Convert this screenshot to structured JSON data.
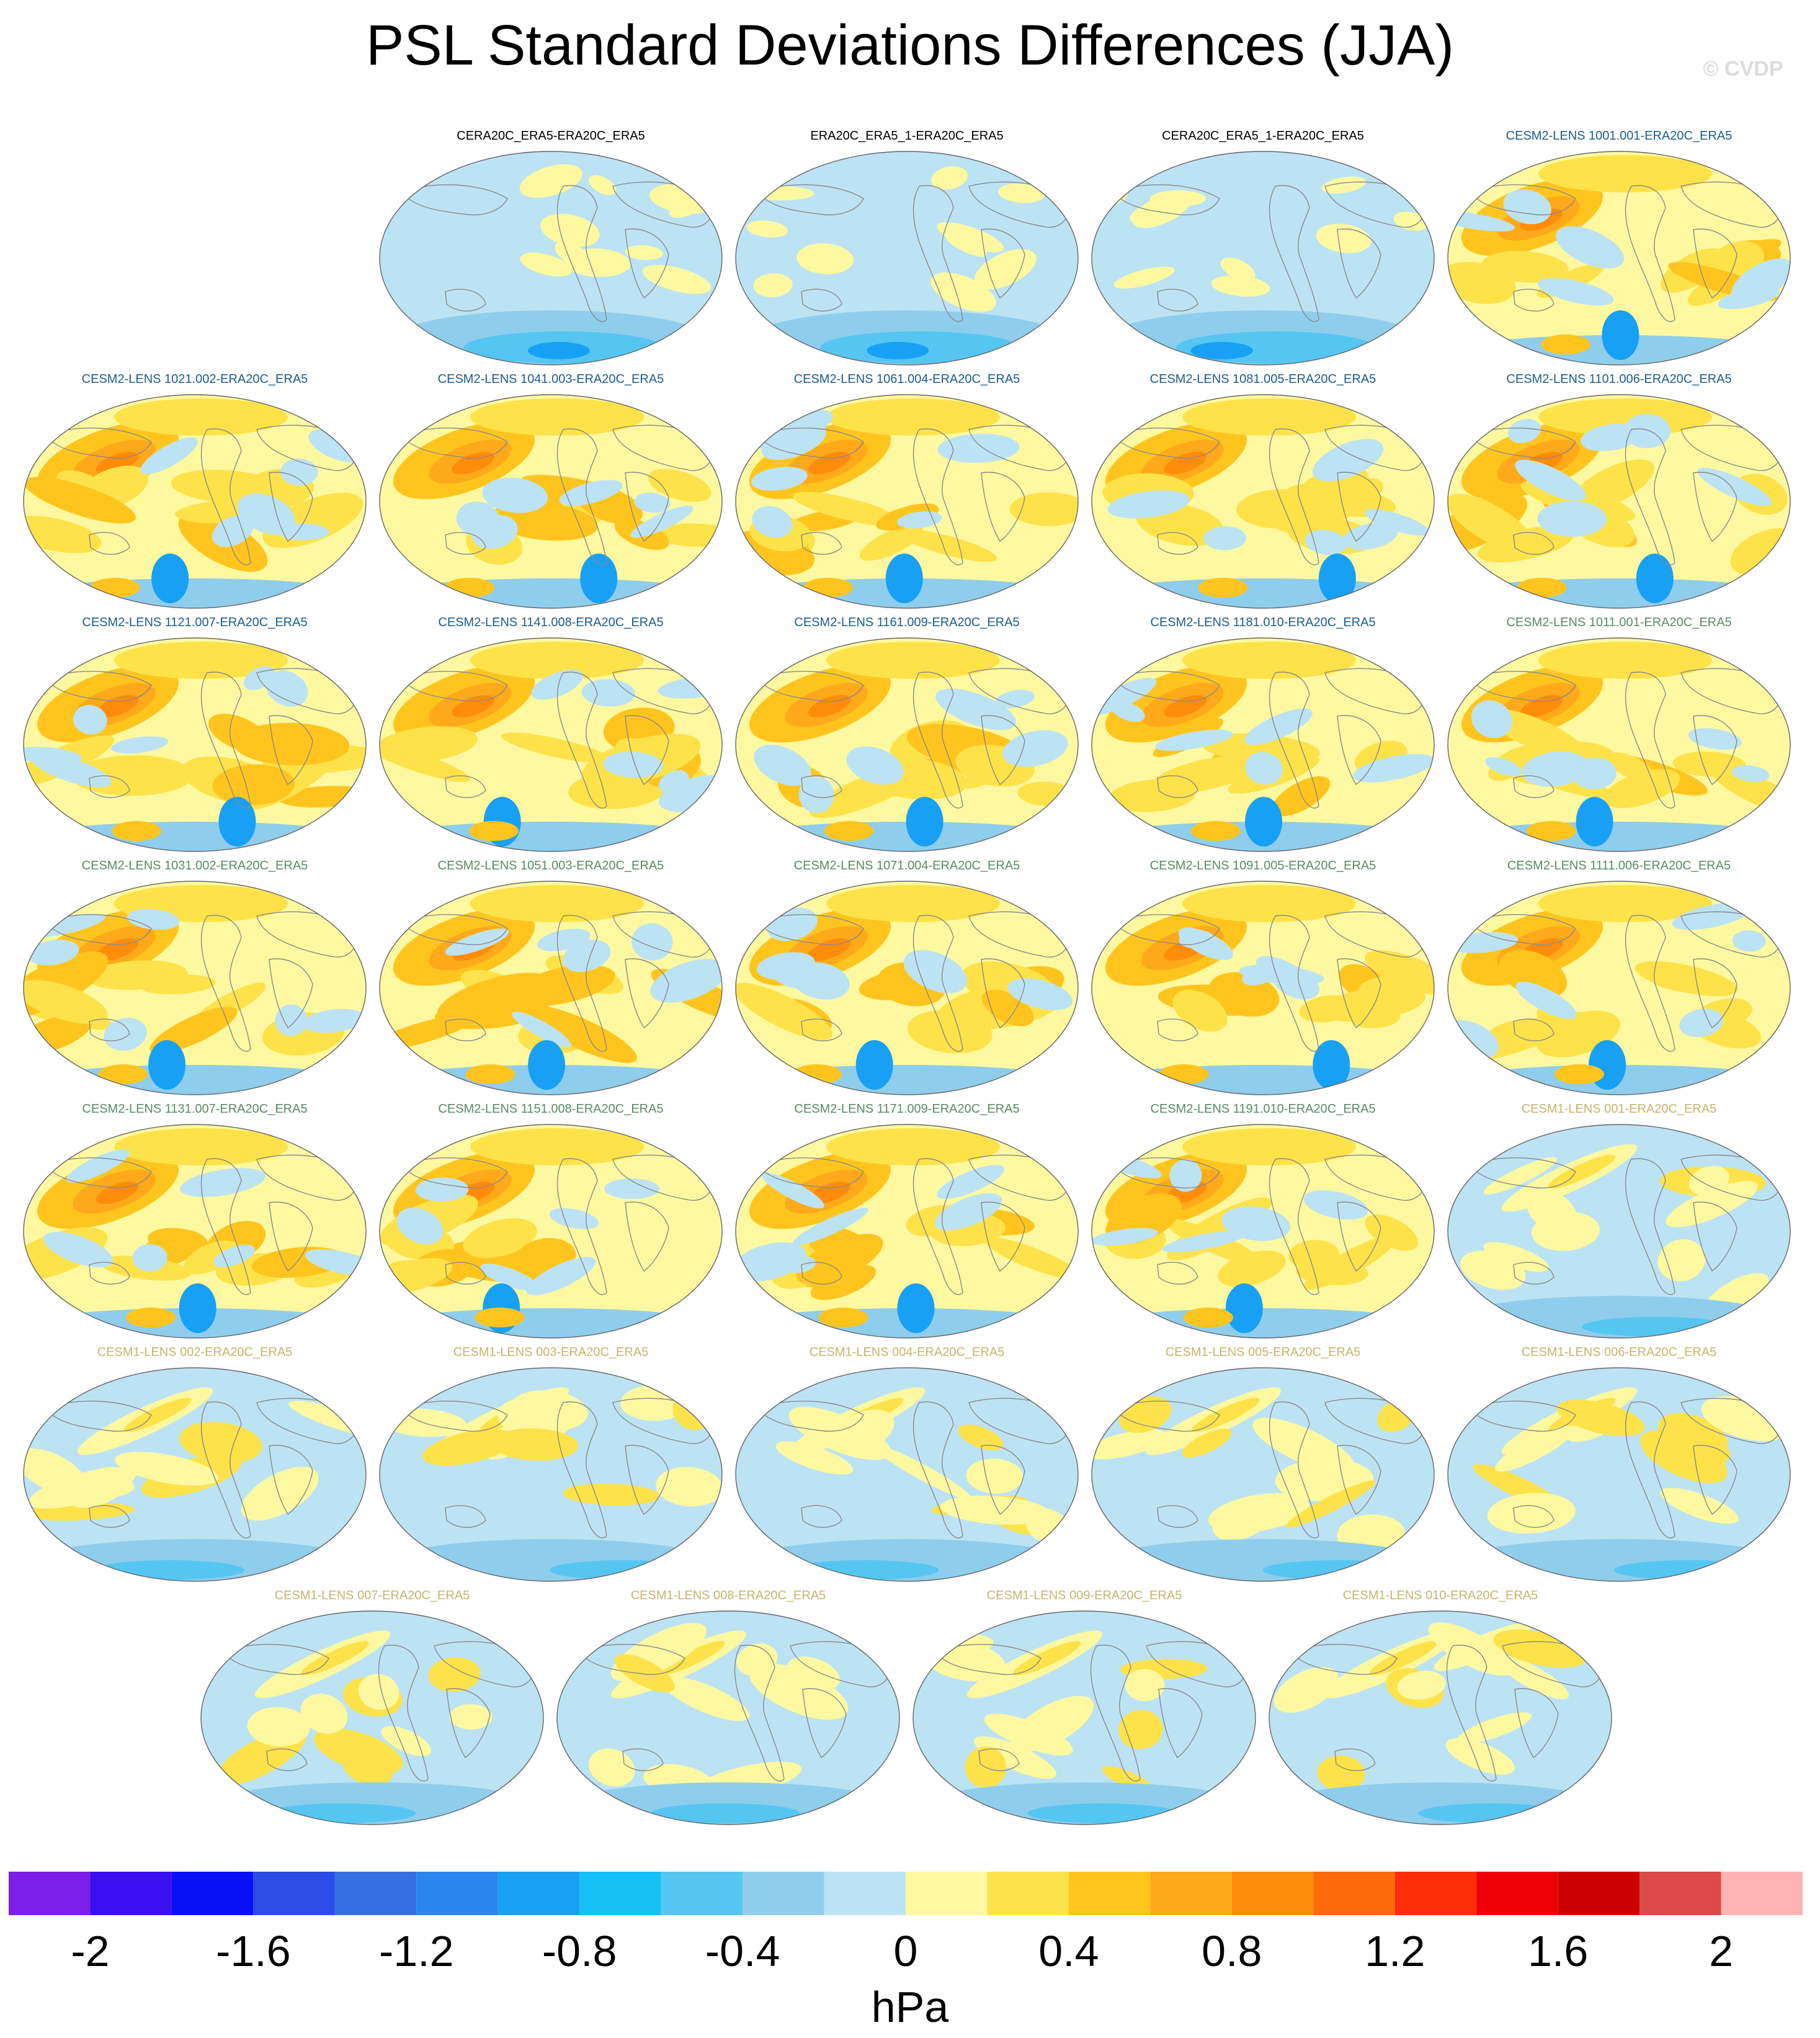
{
  "title": "PSL Standard Deviations Differences (JJA)",
  "watermark": "© CVDP",
  "units": "hPa",
  "colors": {
    "obs_title": "#000000",
    "cesm2_a_title": "#1b5e8c",
    "cesm2_b_title": "#5a8a66",
    "cesm1_title": "#c8b46a",
    "coastline": "#8a8a8a"
  },
  "panels": [
    {
      "label": "CERA20C_ERA5-ERA20C_ERA5",
      "group": "obs",
      "pattern": "negative"
    },
    {
      "label": "ERA20C_ERA5_1-ERA20C_ERA5",
      "group": "obs",
      "pattern": "negative"
    },
    {
      "label": "CERA20C_ERA5_1-ERA20C_ERA5",
      "group": "obs",
      "pattern": "negative"
    },
    {
      "label": "CESM2-LENS 1001.001-ERA20C_ERA5",
      "group": "cesm2_a",
      "pattern": "positive"
    },
    {
      "label": "CESM2-LENS 1021.002-ERA20C_ERA5",
      "group": "cesm2_a",
      "pattern": "positive"
    },
    {
      "label": "CESM2-LENS 1041.003-ERA20C_ERA5",
      "group": "cesm2_a",
      "pattern": "positive"
    },
    {
      "label": "CESM2-LENS 1061.004-ERA20C_ERA5",
      "group": "cesm2_a",
      "pattern": "positive"
    },
    {
      "label": "CESM2-LENS 1081.005-ERA20C_ERA5",
      "group": "cesm2_a",
      "pattern": "positive"
    },
    {
      "label": "CESM2-LENS 1101.006-ERA20C_ERA5",
      "group": "cesm2_a",
      "pattern": "positive"
    },
    {
      "label": "CESM2-LENS 1121.007-ERA20C_ERA5",
      "group": "cesm2_a",
      "pattern": "positive"
    },
    {
      "label": "CESM2-LENS 1141.008-ERA20C_ERA5",
      "group": "cesm2_a",
      "pattern": "positive"
    },
    {
      "label": "CESM2-LENS 1161.009-ERA20C_ERA5",
      "group": "cesm2_a",
      "pattern": "positive"
    },
    {
      "label": "CESM2-LENS 1181.010-ERA20C_ERA5",
      "group": "cesm2_a",
      "pattern": "positive"
    },
    {
      "label": "CESM2-LENS 1011.001-ERA20C_ERA5",
      "group": "cesm2_b",
      "pattern": "positive"
    },
    {
      "label": "CESM2-LENS 1031.002-ERA20C_ERA5",
      "group": "cesm2_b",
      "pattern": "positive"
    },
    {
      "label": "CESM2-LENS 1051.003-ERA20C_ERA5",
      "group": "cesm2_b",
      "pattern": "positive"
    },
    {
      "label": "CESM2-LENS 1071.004-ERA20C_ERA5",
      "group": "cesm2_b",
      "pattern": "positive"
    },
    {
      "label": "CESM2-LENS 1091.005-ERA20C_ERA5",
      "group": "cesm2_b",
      "pattern": "positive"
    },
    {
      "label": "CESM2-LENS 1111.006-ERA20C_ERA5",
      "group": "cesm2_b",
      "pattern": "positive"
    },
    {
      "label": "CESM2-LENS 1131.007-ERA20C_ERA5",
      "group": "cesm2_b",
      "pattern": "positive"
    },
    {
      "label": "CESM2-LENS 1151.008-ERA20C_ERA5",
      "group": "cesm2_b",
      "pattern": "positive"
    },
    {
      "label": "CESM2-LENS 1171.009-ERA20C_ERA5",
      "group": "cesm2_b",
      "pattern": "positive"
    },
    {
      "label": "CESM2-LENS 1191.010-ERA20C_ERA5",
      "group": "cesm2_b",
      "pattern": "positive"
    },
    {
      "label": "CESM1-LENS 001-ERA20C_ERA5",
      "group": "cesm1",
      "pattern": "mixed"
    },
    {
      "label": "CESM1-LENS 002-ERA20C_ERA5",
      "group": "cesm1",
      "pattern": "mixed"
    },
    {
      "label": "CESM1-LENS 003-ERA20C_ERA5",
      "group": "cesm1",
      "pattern": "mixed"
    },
    {
      "label": "CESM1-LENS 004-ERA20C_ERA5",
      "group": "cesm1",
      "pattern": "mixed"
    },
    {
      "label": "CESM1-LENS 005-ERA20C_ERA5",
      "group": "cesm1",
      "pattern": "mixed"
    },
    {
      "label": "CESM1-LENS 006-ERA20C_ERA5",
      "group": "cesm1",
      "pattern": "mixed"
    },
    {
      "label": "CESM1-LENS 007-ERA20C_ERA5",
      "group": "cesm1",
      "pattern": "mixed"
    },
    {
      "label": "CESM1-LENS 008-ERA20C_ERA5",
      "group": "cesm1",
      "pattern": "mixed"
    },
    {
      "label": "CESM1-LENS 009-ERA20C_ERA5",
      "group": "cesm1",
      "pattern": "mixed"
    },
    {
      "label": "CESM1-LENS 010-ERA20C_ERA5",
      "group": "cesm1",
      "pattern": "mixed"
    }
  ],
  "chart_data": {
    "type": "heatmap",
    "title": "PSL Standard Deviations Differences (JJA)",
    "colorbar": {
      "label": "hPa",
      "levels": [
        -2.2,
        -2,
        -1.8,
        -1.6,
        -1.4,
        -1.2,
        -1,
        -0.8,
        -0.6,
        -0.4,
        -0.2,
        0,
        0.2,
        0.4,
        0.6,
        0.8,
        1,
        1.2,
        1.4,
        1.6,
        1.8,
        2,
        2.2
      ],
      "tick_labels": [
        "-2",
        "-1.6",
        "-1.2",
        "-0.8",
        "-0.4",
        "0",
        "0.4",
        "0.8",
        "1.2",
        "1.6",
        "2"
      ],
      "tick_values": [
        -2,
        -1.6,
        -1.2,
        -0.8,
        -0.4,
        0,
        0.4,
        0.8,
        1.2,
        1.6,
        2
      ],
      "colors": [
        "#7a1ee8",
        "#3a0ff0",
        "#0a10f5",
        "#2d4be6",
        "#3470e4",
        "#2a86f0",
        "#18a0f5",
        "#14c0f6",
        "#55c6f2",
        "#8fcdec",
        "#bce3f4",
        "#fef9a0",
        "#fee24a",
        "#ffc51e",
        "#ffa91b",
        "#ff8c0a",
        "#ff6a0c",
        "#ff2d0a",
        "#ee0008",
        "#cc0000",
        "#dd4848",
        "#ffb2b2"
      ]
    },
    "panels_count": 33,
    "layout": "5 columns x 6 rows + 4 centered in last row"
  }
}
